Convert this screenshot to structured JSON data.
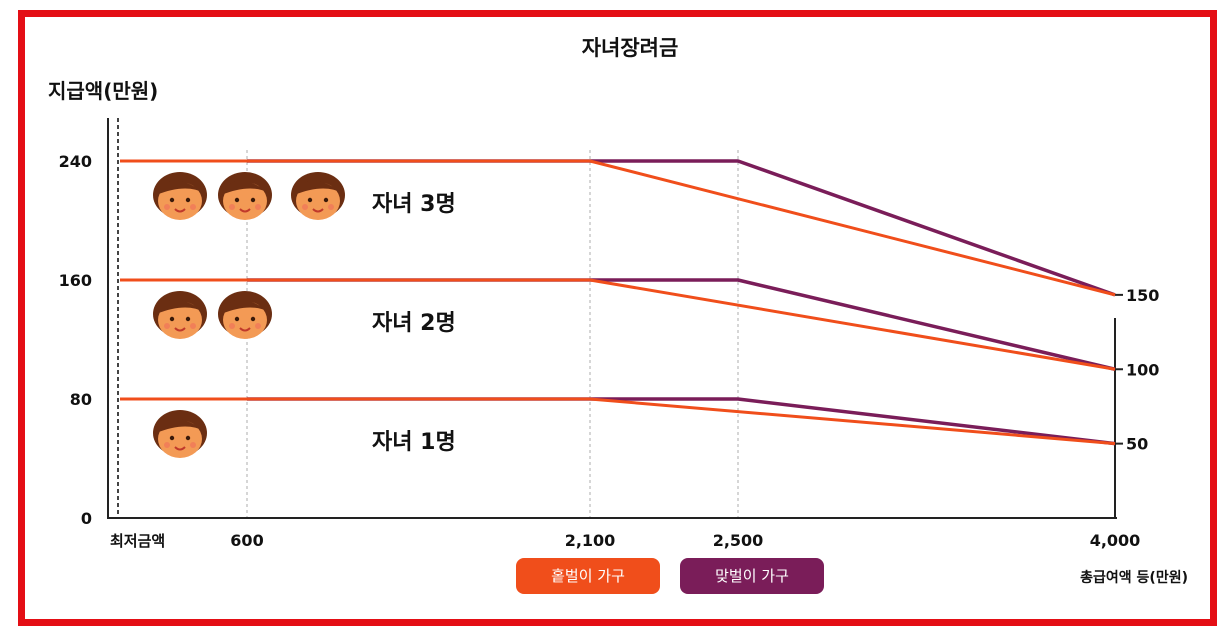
{
  "chart_data": {
    "type": "line",
    "title": "자녀장려금",
    "ylabel": "지급액(만원)",
    "xlabel": "총급여액 등(만원)",
    "ylim": [
      0,
      270
    ],
    "y_ticks": [
      "0",
      "80",
      "160",
      "240"
    ],
    "right_ticks": [
      {
        "value": 150,
        "label": "150"
      },
      {
        "value": 100,
        "label": "100"
      },
      {
        "value": 50,
        "label": "50"
      }
    ],
    "x_ticks": [
      {
        "value": 0,
        "label": "최저금액"
      },
      {
        "value": 600,
        "label": "600"
      },
      {
        "value": 2100,
        "label": "2,100"
      },
      {
        "value": 2500,
        "label": "2,500"
      },
      {
        "value": 4000,
        "label": "4,000"
      }
    ],
    "groups": [
      {
        "label": "자녀 3명",
        "children": 3,
        "single": [
          [
            0,
            240
          ],
          [
            2100,
            240
          ],
          [
            4000,
            150
          ]
        ],
        "dual": [
          [
            600,
            240
          ],
          [
            2500,
            240
          ],
          [
            4000,
            150
          ]
        ]
      },
      {
        "label": "자녀 2명",
        "children": 2,
        "single": [
          [
            0,
            160
          ],
          [
            2100,
            160
          ],
          [
            4000,
            100
          ]
        ],
        "dual": [
          [
            600,
            160
          ],
          [
            2500,
            160
          ],
          [
            4000,
            100
          ]
        ]
      },
      {
        "label": "자녀 1명",
        "children": 1,
        "single": [
          [
            0,
            80
          ],
          [
            2100,
            80
          ],
          [
            4000,
            50
          ]
        ],
        "dual": [
          [
            600,
            80
          ],
          [
            2500,
            80
          ],
          [
            4000,
            50
          ]
        ]
      }
    ],
    "legend": [
      {
        "name": "홑벌이 가구",
        "color": "#f04e1b"
      },
      {
        "name": "맞벌이 가구",
        "color": "#7a1d59"
      }
    ],
    "colors": {
      "single": "#f04e1b",
      "dual": "#7a1d59",
      "frame": "#e40e15"
    }
  }
}
